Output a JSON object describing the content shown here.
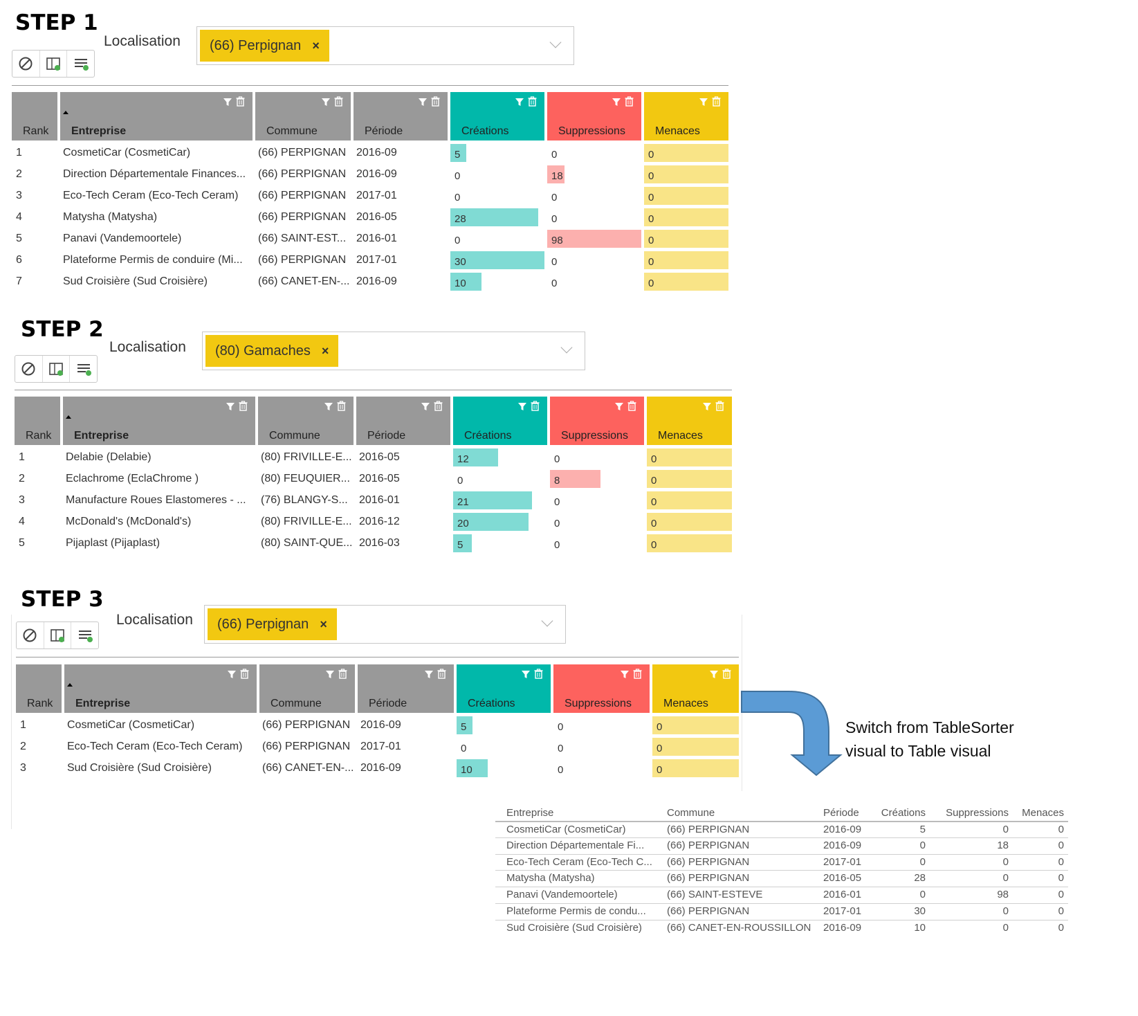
{
  "steps": [
    {
      "title": "STEP 1",
      "localisation_label": "Localisation",
      "chip": "(66) Perpignan",
      "columns": [
        "Rank",
        "Entreprise",
        "Commune",
        "Période",
        "Créations",
        "Suppressions",
        "Menaces"
      ],
      "rows": [
        {
          "rank": "1",
          "entreprise": "CosmetiCar (CosmetiCar)",
          "commune": "(66) PERPIGNAN",
          "periode": "2016-09",
          "creations": 5,
          "suppressions": 0,
          "menaces": 0
        },
        {
          "rank": "2",
          "entreprise": "Direction Départementale Finances...",
          "commune": "(66) PERPIGNAN",
          "periode": "2016-09",
          "creations": 0,
          "suppressions": 18,
          "menaces": 0
        },
        {
          "rank": "3",
          "entreprise": "Eco-Tech Ceram (Eco-Tech Ceram)",
          "commune": "(66) PERPIGNAN",
          "periode": "2017-01",
          "creations": 0,
          "suppressions": 0,
          "menaces": 0
        },
        {
          "rank": "4",
          "entreprise": "Matysha (Matysha)",
          "commune": "(66) PERPIGNAN",
          "periode": "2016-05",
          "creations": 28,
          "suppressions": 0,
          "menaces": 0
        },
        {
          "rank": "5",
          "entreprise": "Panavi (Vandemoortele)",
          "commune": "(66) SAINT-EST...",
          "periode": "2016-01",
          "creations": 0,
          "suppressions": 98,
          "menaces": 0
        },
        {
          "rank": "6",
          "entreprise": "Plateforme Permis de conduire (Mi...",
          "commune": "(66) PERPIGNAN",
          "periode": "2017-01",
          "creations": 30,
          "suppressions": 0,
          "menaces": 0
        },
        {
          "rank": "7",
          "entreprise": "Sud Croisière (Sud Croisière)",
          "commune": "(66) CANET-EN-...",
          "periode": "2016-09",
          "creations": 10,
          "suppressions": 0,
          "menaces": 0
        }
      ]
    },
    {
      "title": "STEP 2",
      "localisation_label": "Localisation",
      "chip": "(80) Gamaches",
      "columns": [
        "Rank",
        "Entreprise",
        "Commune",
        "Période",
        "Créations",
        "Suppressions",
        "Menaces"
      ],
      "rows": [
        {
          "rank": "1",
          "entreprise": "Delabie (Delabie)",
          "commune": "(80) FRIVILLE-E...",
          "periode": "2016-05",
          "creations": 12,
          "suppressions": 0,
          "menaces": 0
        },
        {
          "rank": "2",
          "entreprise": "Eclachrome (EclaChrome )",
          "commune": "(80) FEUQUIER...",
          "periode": "2016-05",
          "creations": 0,
          "suppressions": 8,
          "menaces": 0
        },
        {
          "rank": "3",
          "entreprise": "Manufacture Roues Elastomeres - ...",
          "commune": "(76) BLANGY-S...",
          "periode": "2016-01",
          "creations": 21,
          "suppressions": 0,
          "menaces": 0
        },
        {
          "rank": "4",
          "entreprise": "McDonald's (McDonald's)",
          "commune": "(80) FRIVILLE-E...",
          "periode": "2016-12",
          "creations": 20,
          "suppressions": 0,
          "menaces": 0
        },
        {
          "rank": "5",
          "entreprise": "Pijaplast (Pijaplast)",
          "commune": "(80) SAINT-QUE...",
          "periode": "2016-03",
          "creations": 5,
          "suppressions": 0,
          "menaces": 0
        }
      ]
    },
    {
      "title": "STEP 3",
      "localisation_label": "Localisation",
      "chip": "(66) Perpignan",
      "columns": [
        "Rank",
        "Entreprise",
        "Commune",
        "Période",
        "Créations",
        "Suppressions",
        "Menaces"
      ],
      "rows": [
        {
          "rank": "1",
          "entreprise": "CosmetiCar (CosmetiCar)",
          "commune": "(66) PERPIGNAN",
          "periode": "2016-09",
          "creations": 5,
          "suppressions": 0,
          "menaces": 0
        },
        {
          "rank": "2",
          "entreprise": "Eco-Tech Ceram (Eco-Tech Ceram)",
          "commune": "(66) PERPIGNAN",
          "periode": "2017-01",
          "creations": 0,
          "suppressions": 0,
          "menaces": 0
        },
        {
          "rank": "3",
          "entreprise": "Sud Croisière (Sud Croisière)",
          "commune": "(66) CANET-EN-...",
          "periode": "2016-09",
          "creations": 10,
          "suppressions": 0,
          "menaces": 0
        }
      ]
    }
  ],
  "arrow_caption": "Switch from TableSorter visual to Table visual",
  "plain_table": {
    "columns": [
      "Entreprise",
      "Commune",
      "Période",
      "Créations",
      "Suppressions",
      "Menaces"
    ],
    "rows": [
      [
        "CosmetiCar (CosmetiCar)",
        "(66) PERPIGNAN",
        "2016-09",
        "5",
        "0",
        "0"
      ],
      [
        "Direction Départementale Fi...",
        "(66) PERPIGNAN",
        "2016-09",
        "0",
        "18",
        "0"
      ],
      [
        "Eco-Tech Ceram (Eco-Tech C...",
        "(66) PERPIGNAN",
        "2017-01",
        "0",
        "0",
        "0"
      ],
      [
        "Matysha (Matysha)",
        "(66) PERPIGNAN",
        "2016-05",
        "28",
        "0",
        "0"
      ],
      [
        "Panavi (Vandemoortele)",
        "(66) SAINT-ESTEVE",
        "2016-01",
        "0",
        "98",
        "0"
      ],
      [
        "Plateforme Permis de condu...",
        "(66) PERPIGNAN",
        "2017-01",
        "30",
        "0",
        "0"
      ],
      [
        "Sud Croisière (Sud Croisière)",
        "(66) CANET-EN-ROUSSILLON",
        "2016-09",
        "10",
        "0",
        "0"
      ]
    ]
  },
  "colors": {
    "creations": "#01b8aa",
    "suppressions": "#fd625e",
    "menaces": "#f2c811",
    "header_grey": "#999999"
  },
  "icons": [
    "clear-icon",
    "report-add-icon",
    "list-add-icon",
    "filter-icon",
    "trash-icon",
    "sort-asc-icon",
    "chevron-down-icon",
    "chip-remove-icon",
    "arrow-down-icon"
  ]
}
